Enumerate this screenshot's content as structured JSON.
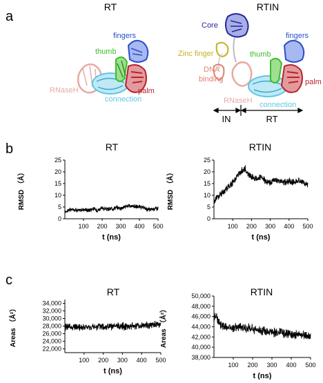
{
  "panel_a": {
    "label": "a",
    "rt": {
      "title": "RT",
      "labels": {
        "fingers": "fingers",
        "thumb": "thumb",
        "rnaseh": "RNaseH",
        "palm": "palm",
        "connection": "connection"
      }
    },
    "rtin": {
      "title": "RTIN",
      "labels": {
        "core": "Core",
        "fingers": "fingers",
        "zinc_finger": "Zinc finger",
        "thumb": "thumb",
        "dna_binding_1": "DNA",
        "dna_binding_2": "binding",
        "palm": "palm",
        "rnaseh": "RNaseH",
        "connection": "connection"
      },
      "domain_in": "IN",
      "domain_rt": "RT"
    }
  },
  "panel_b": {
    "label": "b"
  },
  "panel_c": {
    "label": "c"
  },
  "colors": {
    "fingers": "#2a4fc8",
    "thumb": "#3dbb2f",
    "palm": "#b8232a",
    "connection": "#5fc7e3",
    "rnaseh": "#e7a9a6",
    "core": "#23279b",
    "zinc_finger": "#c2b41c",
    "dna_binding": "#e08070",
    "trace": "#000000"
  },
  "chart_data": [
    {
      "type": "line",
      "title": "RT",
      "xlabel": "t (ns)",
      "ylabel": "RMSD （Å）",
      "xlim": [
        0,
        500
      ],
      "ylim": [
        0,
        25
      ],
      "xticks": [
        100,
        200,
        300,
        400,
        500
      ],
      "yticks": [
        0,
        5,
        10,
        15,
        20,
        25
      ],
      "ytick_labels": [
        "0",
        "5",
        "10",
        "15",
        "20",
        "25"
      ],
      "series": [
        {
          "x": [
            0,
            25,
            50,
            75,
            100,
            125,
            150,
            175,
            200,
            225,
            250,
            275,
            300,
            325,
            350,
            375,
            400,
            425,
            450,
            475,
            500
          ],
          "y": [
            3.0,
            3.8,
            4.0,
            3.5,
            4.0,
            3.6,
            4.3,
            3.7,
            4.5,
            4.0,
            4.2,
            4.8,
            4.5,
            5.2,
            5.5,
            5.3,
            5.0,
            4.6,
            3.8,
            4.2,
            4.6
          ],
          "noise": 1.4
        }
      ]
    },
    {
      "type": "line",
      "title": "RTIN",
      "xlabel": "t (ns)",
      "ylabel": "RMSD （Å）",
      "xlim": [
        0,
        500
      ],
      "ylim": [
        0,
        25
      ],
      "xticks": [
        100,
        200,
        300,
        400,
        500
      ],
      "yticks": [
        0,
        5,
        10,
        15,
        20,
        25
      ],
      "ytick_labels": [
        "0",
        "5",
        "10",
        "15",
        "20",
        "25"
      ],
      "series": [
        {
          "x": [
            0,
            10,
            25,
            50,
            75,
            100,
            125,
            150,
            165,
            180,
            200,
            225,
            250,
            275,
            300,
            325,
            350,
            375,
            400,
            425,
            450,
            475,
            500
          ],
          "y": [
            6.5,
            9.0,
            9.5,
            11.5,
            13.5,
            15.5,
            18.5,
            20.5,
            21.5,
            19.0,
            18.0,
            17.0,
            17.5,
            16.0,
            15.5,
            16.5,
            16.0,
            15.5,
            16.0,
            15.5,
            16.5,
            15.5,
            14.5
          ],
          "noise": 2.2
        }
      ]
    },
    {
      "type": "line",
      "title": "RT",
      "xlabel": "t (ns)",
      "ylabel": "Areas （Å²）",
      "xlim": [
        0,
        500
      ],
      "ylim": [
        21000,
        35000
      ],
      "xticks": [
        100,
        200,
        300,
        400,
        500
      ],
      "yticks": [
        22000,
        24000,
        26000,
        28000,
        30000,
        32000,
        34000
      ],
      "ytick_labels": [
        "22,000",
        "24,000",
        "26,000",
        "28,000",
        "30,000",
        "32,000",
        "34,000"
      ],
      "series": [
        {
          "x": [
            0,
            50,
            100,
            150,
            200,
            250,
            300,
            350,
            400,
            450,
            500
          ],
          "y": [
            27900,
            27700,
            27600,
            27700,
            27900,
            27800,
            28000,
            28000,
            28100,
            28300,
            28400
          ],
          "noise": 1500
        }
      ]
    },
    {
      "type": "line",
      "title": "RTIN",
      "xlabel": "t (ns)",
      "ylabel": "Areas （Å²）",
      "xlim": [
        0,
        500
      ],
      "ylim": [
        38000,
        50000
      ],
      "xticks": [
        100,
        200,
        300,
        400,
        500
      ],
      "yticks": [
        38000,
        40000,
        42000,
        44000,
        46000,
        48000,
        50000
      ],
      "ytick_labels": [
        "38,000",
        "40,000",
        "42,000",
        "44,000",
        "46,000",
        "48,000",
        "50,000"
      ],
      "series": [
        {
          "x": [
            0,
            10,
            20,
            40,
            60,
            100,
            150,
            200,
            250,
            300,
            350,
            400,
            450,
            500
          ],
          "y": [
            45500,
            46500,
            45000,
            44300,
            44000,
            43900,
            43800,
            43600,
            43300,
            43000,
            42800,
            42600,
            42400,
            42200
          ],
          "noise": 1400
        }
      ]
    }
  ]
}
